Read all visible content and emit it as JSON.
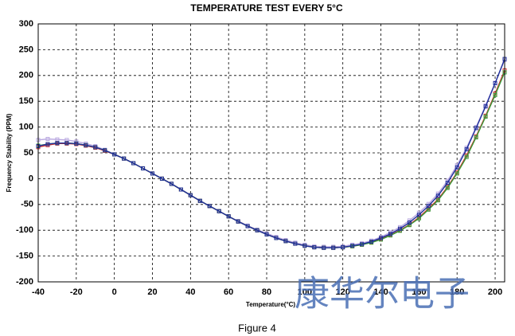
{
  "chart_data": {
    "type": "line",
    "title": "TEMPERATURE  TEST  EVERY  5°C",
    "x_label": "Temperature(°C)",
    "y_label": "Frequency Stability (PPM)",
    "caption": "Figure 4",
    "watermark": "康华尔电子",
    "x": [
      -40,
      -35,
      -30,
      -25,
      -20,
      -15,
      -10,
      -5,
      0,
      5,
      10,
      15,
      20,
      25,
      30,
      35,
      40,
      45,
      50,
      55,
      60,
      65,
      70,
      75,
      80,
      85,
      90,
      95,
      100,
      105,
      110,
      115,
      120,
      125,
      130,
      135,
      140,
      145,
      150,
      155,
      160,
      165,
      170,
      175,
      180,
      185,
      190,
      195,
      200,
      205
    ],
    "series": [
      {
        "name": "purple",
        "color": "#b9a8e0",
        "values": [
          75,
          77,
          76,
          75,
          72,
          68,
          63,
          56,
          47,
          39,
          30,
          20,
          10,
          0,
          -10,
          -21,
          -32,
          -43,
          -53,
          -63,
          -73,
          -82,
          -91,
          -99,
          -106,
          -113,
          -119,
          -124,
          -128,
          -131,
          -132,
          -132,
          -131,
          -128,
          -125,
          -120,
          -113,
          -104,
          -94,
          -81,
          -66,
          -49,
          -29,
          -4,
          26,
          60,
          100,
          142,
          186,
          230
        ]
      },
      {
        "name": "red",
        "color": "#d03030",
        "values": [
          61,
          65,
          68,
          68,
          67,
          64,
          60,
          54,
          47,
          39,
          30,
          20,
          10,
          0,
          -10,
          -21,
          -32,
          -43,
          -53,
          -63,
          -73,
          -83,
          -92,
          -100,
          -108,
          -115,
          -121,
          -126,
          -130,
          -133,
          -134,
          -134,
          -133,
          -131,
          -128,
          -123,
          -117,
          -109,
          -100,
          -89,
          -75,
          -58,
          -40,
          -16,
          12,
          45,
          82,
          122,
          165,
          210
        ]
      },
      {
        "name": "green",
        "color": "#3a9a3a",
        "values": [
          64,
          67,
          69,
          69,
          68,
          65,
          61,
          55,
          47,
          39,
          30,
          20,
          10,
          0,
          -10,
          -21,
          -32,
          -43,
          -53,
          -63,
          -73,
          -83,
          -92,
          -100,
          -108,
          -115,
          -121,
          -126,
          -130,
          -133,
          -134,
          -134,
          -133,
          -131,
          -128,
          -124,
          -118,
          -110,
          -101,
          -90,
          -77,
          -60,
          -42,
          -18,
          10,
          42,
          80,
          120,
          162,
          206
        ]
      },
      {
        "name": "blue",
        "color": "#1f2f9a",
        "values": [
          63,
          67,
          69,
          69,
          68,
          65,
          61,
          55,
          47,
          39,
          30,
          20,
          10,
          0,
          -10,
          -21,
          -32,
          -43,
          -53,
          -63,
          -73,
          -83,
          -92,
          -100,
          -108,
          -115,
          -121,
          -126,
          -130,
          -133,
          -134,
          -134,
          -133,
          -130,
          -127,
          -122,
          -115,
          -107,
          -97,
          -85,
          -70,
          -53,
          -33,
          -8,
          22,
          57,
          98,
          140,
          185,
          232
        ]
      }
    ],
    "xlim": [
      -40,
      205
    ],
    "xticks": [
      -40,
      -20,
      0,
      20,
      40,
      60,
      80,
      100,
      120,
      140,
      160,
      180,
      200
    ],
    "ylim": [
      -200,
      300
    ],
    "yticks": [
      -200,
      -150,
      -100,
      -50,
      0,
      50,
      100,
      150,
      200,
      250,
      300
    ],
    "grid": true
  }
}
